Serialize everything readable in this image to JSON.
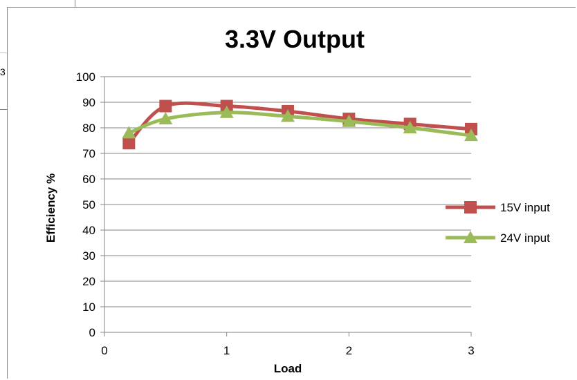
{
  "background": {
    "fragment_text": "3"
  },
  "chart_data": {
    "type": "line",
    "title": "3.3V Output",
    "xlabel": "Load",
    "ylabel": "Efficiency %",
    "xlim": [
      0,
      3
    ],
    "ylim": [
      0,
      100
    ],
    "xticks": [
      "0",
      "1",
      "2",
      "3"
    ],
    "yticks": [
      "0",
      "10",
      "20",
      "30",
      "40",
      "50",
      "60",
      "70",
      "80",
      "90",
      "100"
    ],
    "grid": "horizontal",
    "legend_position": "right",
    "smooth": true,
    "series": [
      {
        "name": "15V input",
        "color": "#c0504d",
        "marker": "square",
        "x": [
          0.2,
          0.5,
          1.0,
          1.5,
          2.0,
          2.5,
          3.0
        ],
        "y": [
          74,
          88.5,
          88.5,
          86.5,
          83.5,
          81.5,
          79.5
        ]
      },
      {
        "name": "24V input",
        "color": "#9bbb59",
        "marker": "triangle",
        "x": [
          0.2,
          0.5,
          1.0,
          1.5,
          2.0,
          2.5,
          3.0
        ],
        "y": [
          78,
          83.5,
          86,
          84.5,
          82.5,
          80,
          77
        ]
      }
    ]
  }
}
